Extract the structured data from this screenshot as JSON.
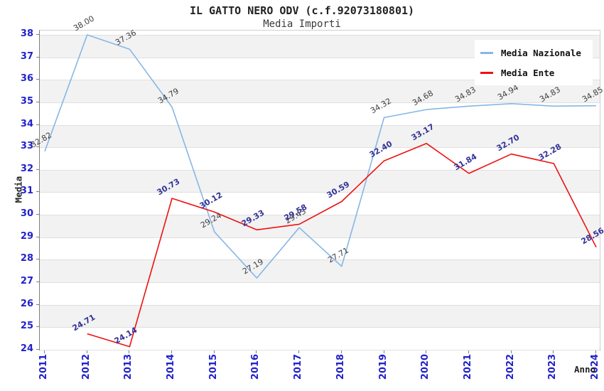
{
  "title": "IL GATTO NERO ODV (c.f.92073180801)",
  "subtitle": "Media Importi",
  "axes": {
    "x_label": "Anno",
    "y_label": "Media"
  },
  "legend": [
    {
      "label": "Media Nazionale"
    },
    {
      "label": "Media Ente"
    }
  ],
  "colors": {
    "tick_label": "#2222cc",
    "band_gray": "#f2f2f2",
    "gridline": "#e0e0e0",
    "nazionale_line": "#85b7e5",
    "ente_line": "#ee1111",
    "nazionale_point_label": "#3d3d3d",
    "ente_point_label": "#333399"
  },
  "chart_data": {
    "type": "line",
    "title": "IL GATTO NERO ODV (c.f.92073180801)",
    "subtitle": "Media Importi",
    "xlabel": "Anno",
    "ylabel": "Media",
    "categories": [
      "2011",
      "2012",
      "2013",
      "2014",
      "2015",
      "2016",
      "2017",
      "2018",
      "2019",
      "2020",
      "2021",
      "2022",
      "2023",
      "2024"
    ],
    "ylim": [
      24,
      38
    ],
    "yticks": [
      24,
      25,
      26,
      27,
      28,
      29,
      30,
      31,
      32,
      33,
      34,
      35,
      36,
      37,
      38
    ],
    "grid": true,
    "legend_position": "top-right",
    "series": [
      {
        "name": "Media Nazionale",
        "color": "#85b7e5",
        "label_color": "#3d3d3d",
        "values": [
          32.82,
          38.0,
          37.36,
          34.79,
          29.24,
          27.19,
          29.43,
          27.71,
          34.32,
          34.68,
          34.83,
          34.94,
          34.83,
          34.85
        ]
      },
      {
        "name": "Media Ente",
        "color": "#ee1111",
        "label_color": "#333399",
        "values": [
          null,
          24.71,
          24.14,
          30.73,
          30.12,
          29.33,
          29.58,
          30.59,
          32.4,
          33.17,
          31.84,
          32.7,
          32.28,
          28.56
        ]
      }
    ]
  }
}
